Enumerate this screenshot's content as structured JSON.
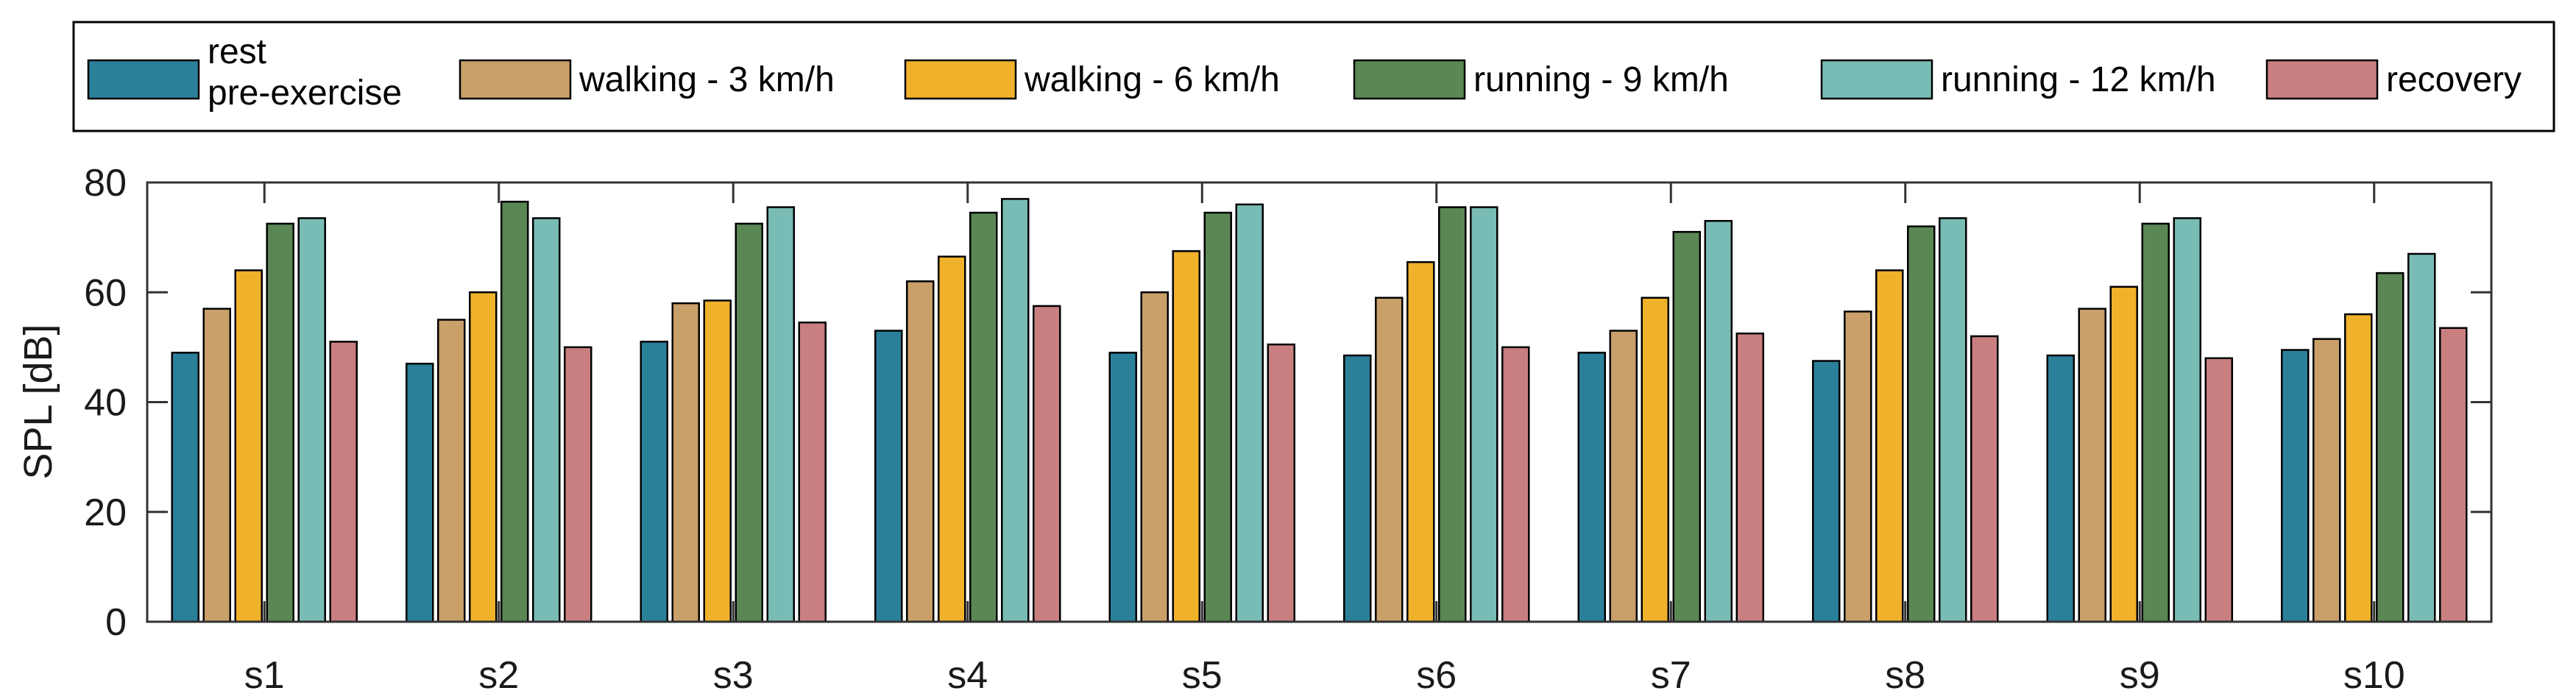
{
  "chart_data": {
    "type": "bar",
    "title": "",
    "xlabel": "",
    "ylabel": "SPL [dB]",
    "ylim": [
      0,
      80
    ],
    "yticks": [
      0,
      20,
      40,
      60,
      80
    ],
    "grid": false,
    "legend_position": "top",
    "categories": [
      "s1",
      "s2",
      "s3",
      "s4",
      "s5",
      "s6",
      "s7",
      "s8",
      "s9",
      "s10"
    ],
    "series": [
      {
        "name": "rest\npre-exercise",
        "color": "#2b8099",
        "values": [
          49,
          47,
          51,
          53,
          49,
          48.5,
          49,
          47.5,
          48.5,
          49.5
        ]
      },
      {
        "name": "walking - 3 km/h",
        "color": "#c9a06a",
        "values": [
          57,
          55,
          58,
          62,
          60,
          59,
          53,
          56.5,
          57,
          51.5
        ]
      },
      {
        "name": "walking - 6 km/h",
        "color": "#f0b22b",
        "values": [
          64,
          60,
          58.5,
          66.5,
          67.5,
          65.5,
          59,
          64,
          61,
          56
        ]
      },
      {
        "name": "running - 9 km/h",
        "color": "#5a8754",
        "values": [
          72.5,
          76.5,
          72.5,
          74.5,
          74.5,
          75.5,
          71,
          72,
          72.5,
          63.5
        ]
      },
      {
        "name": "running - 12 km/h",
        "color": "#79bcb5",
        "values": [
          73.5,
          73.5,
          75.5,
          77,
          76,
          75.5,
          73,
          73.5,
          73.5,
          67
        ]
      },
      {
        "name": "recovery",
        "color": "#c97f80",
        "values": [
          51,
          50,
          54.5,
          57.5,
          50.5,
          50,
          52.5,
          52,
          48,
          53.5
        ]
      }
    ]
  }
}
